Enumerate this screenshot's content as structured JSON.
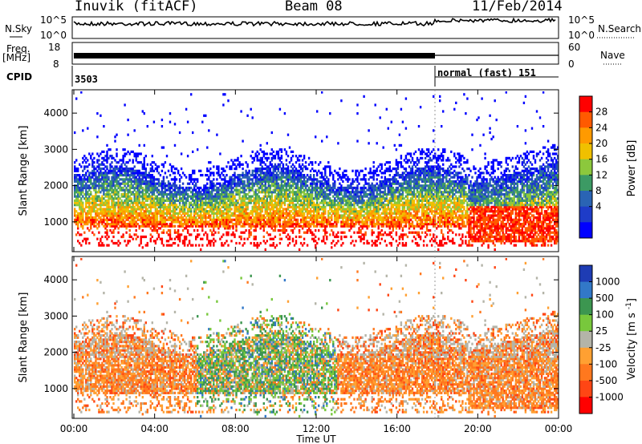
{
  "header": {
    "station": "Inuvik (fitACF)",
    "beam": "Beam 08",
    "date": "11/Feb/2014"
  },
  "top_panels": {
    "nsky_label": "N.Sky",
    "nsky_ticks": [
      "10^5",
      "10^0"
    ],
    "nsearch_label": "N.Search",
    "nsearch_ticks": [
      "10^5",
      "10^0"
    ],
    "freq_label": "Freq.",
    "freq_unit": "[MHz]",
    "freq_ticks": [
      "18",
      "8"
    ],
    "nave_label": "Nave",
    "nave_ticks": [
      "60",
      "0"
    ],
    "cpid_label": "CPID",
    "cpid_segments": [
      {
        "label": "3503",
        "start_h": 0,
        "end_h": 18
      },
      {
        "label": "normal (fast) 151",
        "start_h": 18,
        "end_h": 24
      }
    ]
  },
  "chart_data": [
    {
      "type": "heatmap",
      "name": "power",
      "ylabel": "Slant Range [km]",
      "xlim": [
        0,
        24
      ],
      "ylim": [
        200,
        4600
      ],
      "yticks": [
        "1000",
        "2000",
        "3000",
        "4000"
      ],
      "colorbar": {
        "label": "Power [dB]",
        "ticks": [
          "28",
          "24",
          "20",
          "16",
          "12",
          "8",
          "4"
        ],
        "colors": [
          "#ff0000",
          "#ff5a00",
          "#ff9a00",
          "#f0c000",
          "#8cc83c",
          "#3c9a64",
          "#2a64b4",
          "#1e3cc8",
          "#0000ff"
        ]
      },
      "summary": {
        "main_band_km": [
          800,
          2200
        ],
        "strong_low_band_km": [
          400,
          1300
        ],
        "strong_low_band_hours": [
          20,
          24
        ],
        "cpid_change_h": 18
      }
    },
    {
      "type": "heatmap",
      "name": "velocity",
      "ylabel": "Slant Range [km]",
      "xlabel": "Time UT",
      "xlim": [
        0,
        24
      ],
      "ylim": [
        200,
        4600
      ],
      "xticks": [
        "00:00",
        "04:00",
        "08:00",
        "12:00",
        "16:00",
        "20:00",
        "00:00"
      ],
      "yticks": [
        "1000",
        "2000",
        "3000",
        "4000"
      ],
      "colorbar": {
        "label": "Velocity",
        "unit": "[m s",
        "unit_exp": "-1",
        "unit_close": "]",
        "ticks": [
          "1000",
          "500",
          "100",
          "25",
          "-25",
          "-100",
          "-500",
          "-1000"
        ],
        "colors": [
          "#1e3cb4",
          "#3278c8",
          "#3c9650",
          "#78c83c",
          "#b4b4a8",
          "#ffa032",
          "#ff781e",
          "#ff4614",
          "#ff0000"
        ]
      },
      "summary": {
        "main_band_km": [
          800,
          2200
        ],
        "green_blue_hours": [
          6,
          13
        ]
      }
    }
  ]
}
